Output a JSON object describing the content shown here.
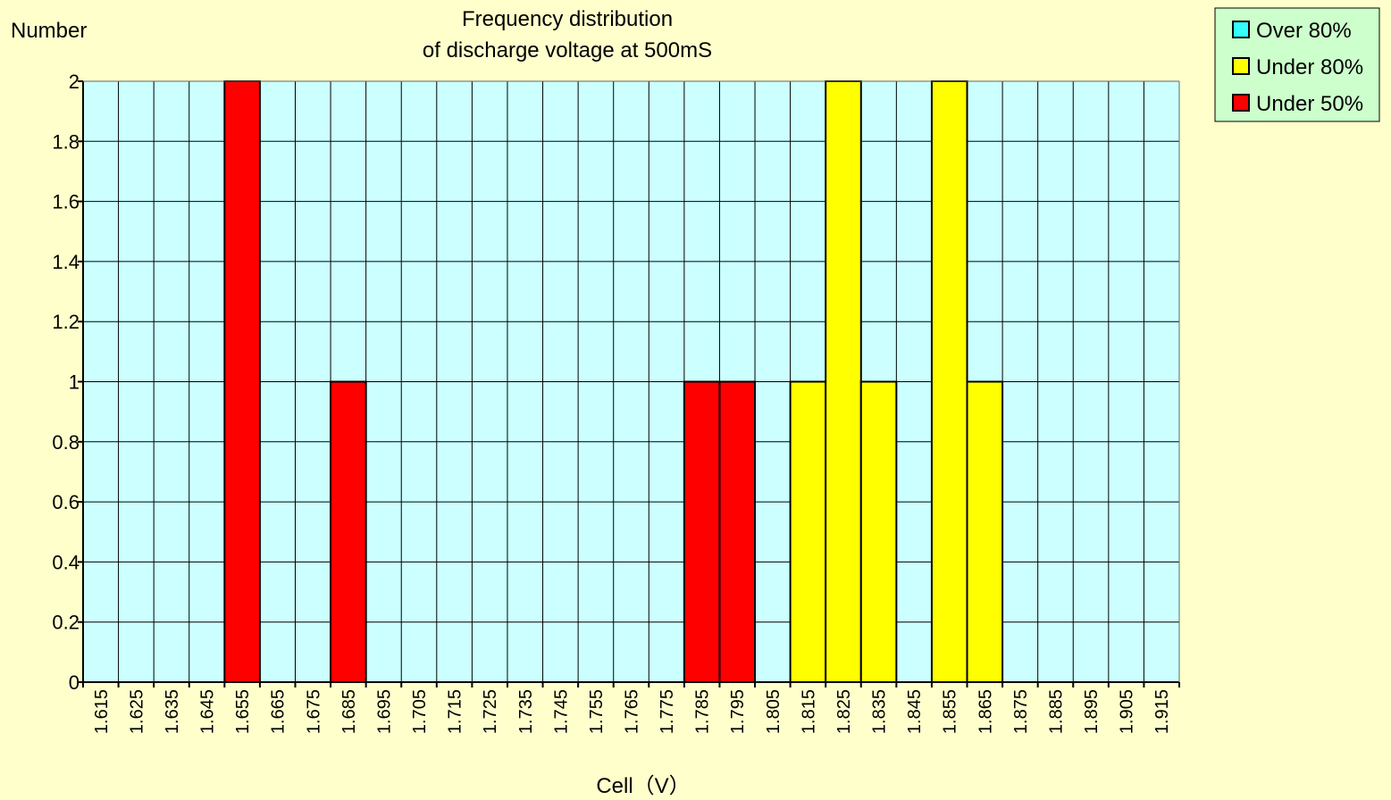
{
  "chart_data": {
    "type": "bar",
    "title_line1": "Frequency distribution",
    "title_line2": "of discharge voltage at 500mS",
    "ylabel": "Number",
    "xlabel": "Cell（V）",
    "ylim": [
      0,
      2
    ],
    "yticks": [
      "0",
      "0.2",
      "0.4",
      "0.6",
      "0.8",
      "1",
      "1.2",
      "1.4",
      "1.6",
      "1.8",
      "2"
    ],
    "categories": [
      "1.615",
      "1.625",
      "1.635",
      "1.645",
      "1.655",
      "1.665",
      "1.675",
      "1.685",
      "1.695",
      "1.705",
      "1.715",
      "1.725",
      "1.735",
      "1.745",
      "1.755",
      "1.765",
      "1.775",
      "1.785",
      "1.795",
      "1.805",
      "1.815",
      "1.825",
      "1.835",
      "1.845",
      "1.855",
      "1.865",
      "1.875",
      "1.885",
      "1.895",
      "1.905",
      "1.915"
    ],
    "series": [
      {
        "name": "Over 80%",
        "color": "#33FFFF",
        "values": [
          0,
          0,
          0,
          0,
          0,
          0,
          0,
          0,
          0,
          0,
          0,
          0,
          0,
          0,
          0,
          0,
          0,
          0,
          0,
          0,
          0,
          0,
          0,
          0,
          0,
          0,
          0,
          0,
          0,
          0,
          0
        ]
      },
      {
        "name": "Under 80%",
        "color": "#FFFF00",
        "values": [
          0,
          0,
          0,
          0,
          0,
          0,
          0,
          0,
          0,
          0,
          0,
          0,
          0,
          0,
          0,
          0,
          0,
          0,
          0,
          0,
          1,
          2,
          1,
          0,
          2,
          1,
          0,
          0,
          0,
          0,
          0
        ]
      },
      {
        "name": "Under 50%",
        "color": "#FF0000",
        "values": [
          0,
          0,
          0,
          0,
          2,
          0,
          0,
          1,
          0,
          0,
          0,
          0,
          0,
          0,
          0,
          0,
          0,
          1,
          1,
          0,
          0,
          0,
          0,
          0,
          0,
          0,
          0,
          0,
          0,
          0,
          0
        ]
      }
    ],
    "plot_background": "#CCFFFF",
    "page_background": "#FFFFCC",
    "legend_background": "#CCFFCC",
    "legend_position": "top-right",
    "grid": true
  }
}
